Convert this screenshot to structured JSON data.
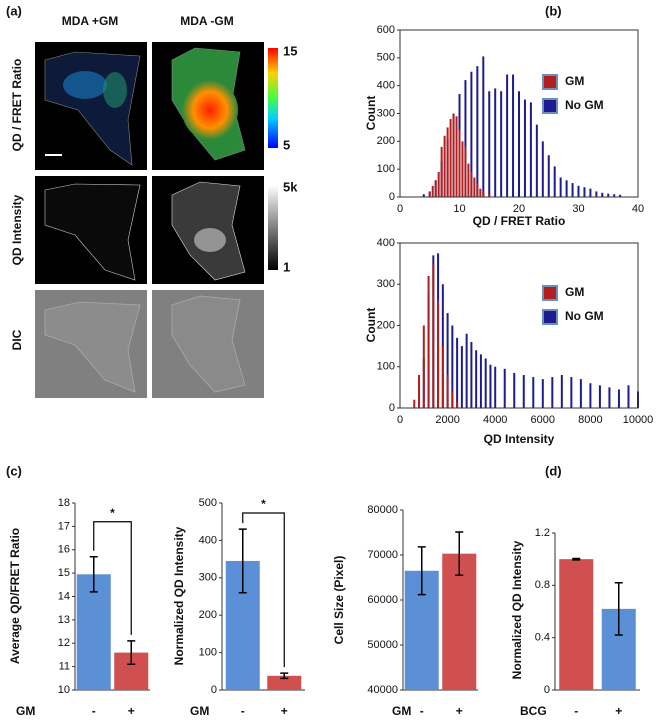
{
  "panel_labels": [
    "(a)",
    "(b)",
    "(c)",
    "(d)"
  ],
  "image_panel": {
    "columns": [
      "MDA +GM",
      "MDA -GM"
    ],
    "rows": [
      "QD / FRET Ratio",
      "QD Intensity",
      "DIC"
    ],
    "colorbars": [
      {
        "max": 15,
        "min": 5
      },
      {
        "max": "5k",
        "min": 1
      }
    ]
  },
  "chart_data": [
    {
      "type": "bar",
      "xlabel": "QD / FRET Ratio",
      "ylabel": "Count",
      "xlim": [
        0,
        40
      ],
      "xticks": [
        0,
        10,
        20,
        30,
        40
      ],
      "ylim": [
        0,
        600
      ],
      "yticks": [
        0,
        100,
        200,
        300,
        400,
        500,
        600
      ],
      "legend": "upper right",
      "series": [
        {
          "name": "GM",
          "color": "#b01e1e",
          "x": [
            5,
            5.5,
            6,
            6.5,
            7,
            7.5,
            8,
            8.5,
            9,
            9.5,
            10,
            10.5,
            11,
            11.5,
            12,
            12.5,
            13,
            13.5,
            14,
            15
          ],
          "values": [
            20,
            40,
            60,
            90,
            180,
            220,
            250,
            280,
            300,
            290,
            240,
            200,
            180,
            120,
            90,
            70,
            50,
            30,
            20,
            10
          ]
        },
        {
          "name": "No GM",
          "color": "#1c1c8f",
          "x": [
            4,
            5,
            6,
            7,
            8,
            9,
            10,
            11,
            12,
            13,
            14,
            15,
            16,
            17,
            18,
            19,
            20,
            21,
            22,
            23,
            24,
            25,
            26,
            27,
            28,
            29,
            30,
            31,
            32,
            33,
            34,
            35,
            36,
            37
          ],
          "values": [
            10,
            20,
            60,
            130,
            210,
            300,
            370,
            420,
            450,
            470,
            505,
            380,
            390,
            380,
            440,
            440,
            380,
            350,
            340,
            260,
            200,
            150,
            110,
            70,
            60,
            50,
            40,
            35,
            30,
            20,
            15,
            12,
            10,
            8
          ]
        }
      ]
    },
    {
      "type": "bar",
      "xlabel": "QD Intensity",
      "ylabel": "Count",
      "xlim": [
        0,
        10000
      ],
      "xticks": [
        0,
        2000,
        4000,
        6000,
        8000,
        10000
      ],
      "ylim": [
        0,
        400
      ],
      "yticks": [
        0,
        100,
        200,
        300,
        400
      ],
      "legend": "upper right",
      "series": [
        {
          "name": "GM",
          "color": "#b01e1e",
          "x": [
            600,
            800,
            1000,
            1200,
            1400,
            1600,
            1800,
            2000,
            2200,
            2400
          ],
          "values": [
            20,
            80,
            200,
            320,
            350,
            260,
            150,
            80,
            40,
            15
          ]
        },
        {
          "name": "No GM",
          "color": "#1c1c8f",
          "x": [
            800,
            1000,
            1200,
            1400,
            1600,
            1800,
            2000,
            2200,
            2400,
            2600,
            2800,
            3000,
            3200,
            3400,
            3600,
            3800,
            4000,
            4400,
            4800,
            5200,
            5600,
            6000,
            6400,
            6800,
            7200,
            7600,
            8000,
            8400,
            8800,
            9200,
            9600,
            10000
          ],
          "values": [
            20,
            120,
            280,
            370,
            375,
            300,
            230,
            200,
            170,
            150,
            180,
            160,
            140,
            130,
            120,
            105,
            100,
            95,
            85,
            80,
            75,
            70,
            75,
            80,
            75,
            70,
            60,
            55,
            50,
            45,
            55,
            40
          ]
        }
      ]
    },
    {
      "type": "bar",
      "ylabel": "Average QD/FRET Ratio",
      "xlabel": "GM",
      "categories": [
        "-",
        "+"
      ],
      "values": [
        14.95,
        11.6
      ],
      "errors": [
        0.75,
        0.5
      ],
      "colors": [
        "#5b8fd6",
        "#d0504f"
      ],
      "ylim": [
        10,
        18
      ],
      "yticks": [
        10,
        11,
        12,
        13,
        14,
        15,
        16,
        17,
        18
      ],
      "annotation": "*"
    },
    {
      "type": "bar",
      "ylabel": "Normalized QD Intensity",
      "xlabel": "GM",
      "categories": [
        "-",
        "+"
      ],
      "values": [
        345,
        38
      ],
      "errors": [
        85,
        7
      ],
      "colors": [
        "#5b8fd6",
        "#d0504f"
      ],
      "ylim": [
        0,
        500
      ],
      "yticks": [
        0,
        100,
        200,
        300,
        400,
        500
      ],
      "annotation": "*"
    },
    {
      "type": "bar",
      "ylabel": "Cell Size (Pixel)",
      "xlabel": "GM",
      "categories": [
        "-",
        "+"
      ],
      "values": [
        66500,
        70300
      ],
      "errors": [
        5300,
        4800
      ],
      "colors": [
        "#5b8fd6",
        "#d0504f"
      ],
      "ylim": [
        40000,
        80000
      ],
      "yticks": [
        40000,
        50000,
        60000,
        70000,
        80000
      ]
    },
    {
      "type": "bar",
      "ylabel": "Normalized QD Intensity",
      "xlabel": "BCG",
      "categories": [
        "-",
        "+"
      ],
      "values": [
        1.0,
        0.62
      ],
      "errors": [
        0.005,
        0.2
      ],
      "colors": [
        "#d0504f",
        "#5b8fd6"
      ],
      "ylim": [
        0,
        1.2
      ],
      "yticks": [
        0,
        0.4,
        0.8,
        1.2
      ]
    }
  ]
}
